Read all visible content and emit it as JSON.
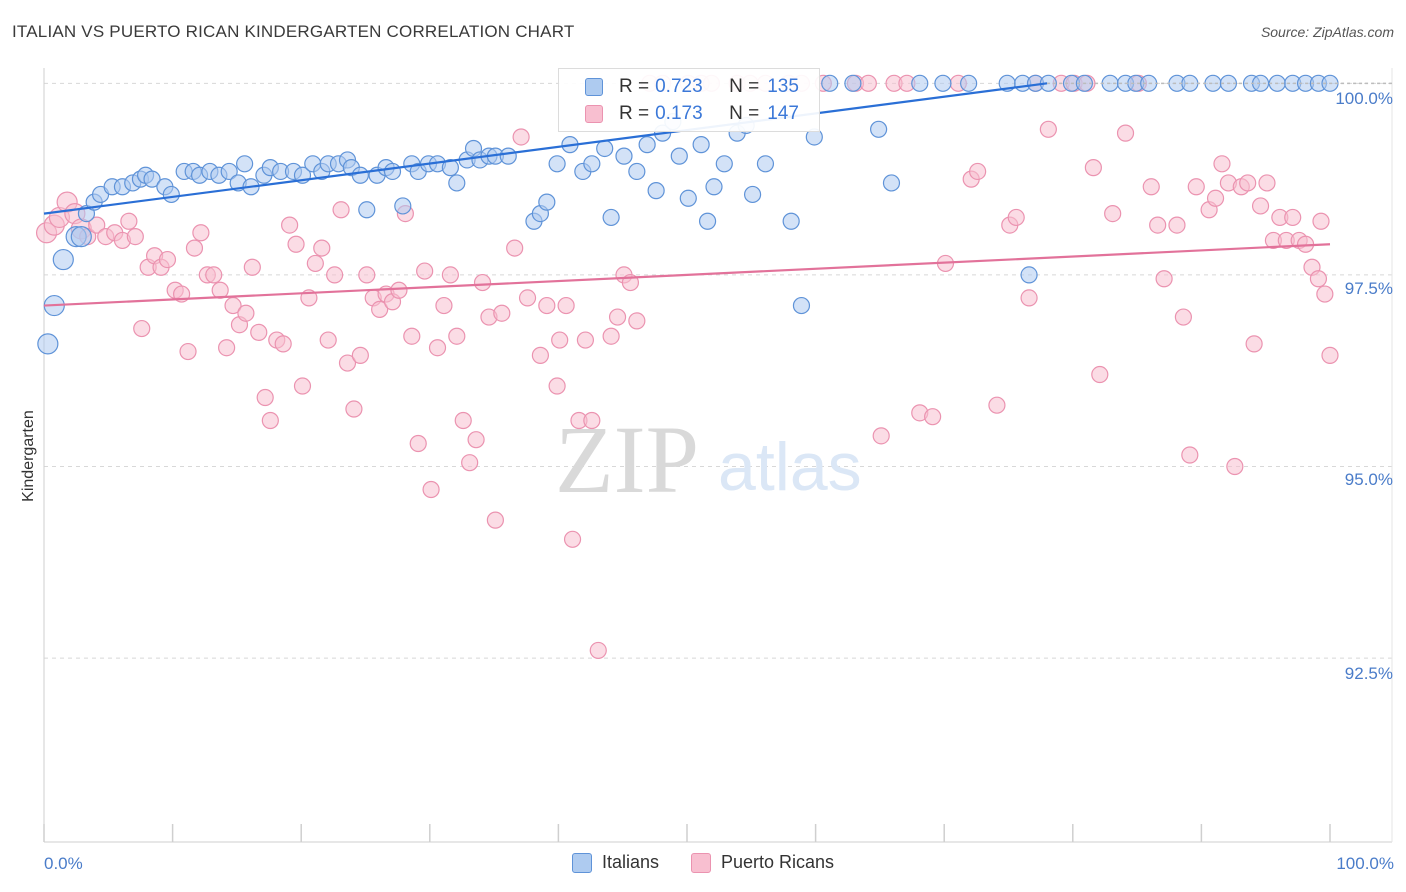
{
  "title": "ITALIAN VS PUERTO RICAN KINDERGARTEN CORRELATION CHART",
  "source": "Source: ZipAtlas.com",
  "watermark": {
    "zip": "ZIP",
    "atlas": "atlas"
  },
  "colors": {
    "blue_fill": "#aecbf0",
    "blue_stroke": "#5f93d8",
    "blue_line": "#2a6fd6",
    "pink_fill": "#f8bfd0",
    "pink_stroke": "#eb93b0",
    "pink_line": "#e2729a",
    "tick": "#4a7cc9",
    "grid": "#d8d8d8"
  },
  "legend": {
    "rows": [
      {
        "name": "Italians",
        "r_label": "R =",
        "r_value": "0.723",
        "n_label": "N =",
        "n_value": "135"
      },
      {
        "name": "Puerto Ricans",
        "r_label": "R =",
        "r_value": "0.173",
        "n_label": "N =",
        "n_value": "147"
      }
    ]
  },
  "chart_data": {
    "type": "scatter",
    "title": "ITALIAN VS PUERTO RICAN KINDERGARTEN CORRELATION CHART",
    "xlabel": "",
    "ylabel": "Kindergarten",
    "xlim": [
      0,
      100
    ],
    "ylim": [
      90.1,
      100.2
    ],
    "x_tick_labels": [
      "0.0%",
      "100.0%"
    ],
    "y_ticks": [
      {
        "value": 92.5,
        "label": "92.5%"
      },
      {
        "value": 95.0,
        "label": "95.0%"
      },
      {
        "value": 97.5,
        "label": "97.5%"
      },
      {
        "value": 100.0,
        "label": "100.0%"
      }
    ],
    "series": [
      {
        "name": "Italians",
        "trendline": {
          "x": [
            0,
            78
          ],
          "y": [
            98.3,
            100.0
          ]
        },
        "points": [
          [
            0.3,
            96.6
          ],
          [
            0.8,
            97.1
          ],
          [
            1.5,
            97.7
          ],
          [
            2.5,
            98.0
          ],
          [
            2.9,
            98.0
          ],
          [
            3.3,
            98.3
          ],
          [
            3.9,
            98.45
          ],
          [
            4.4,
            98.55
          ],
          [
            5.3,
            98.65
          ],
          [
            6.1,
            98.65
          ],
          [
            6.9,
            98.7
          ],
          [
            7.5,
            98.75
          ],
          [
            7.9,
            98.8
          ],
          [
            8.4,
            98.75
          ],
          [
            9.4,
            98.65
          ],
          [
            9.9,
            98.55
          ],
          [
            10.9,
            98.85
          ],
          [
            11.6,
            98.85
          ],
          [
            12.1,
            98.8
          ],
          [
            12.9,
            98.85
          ],
          [
            13.6,
            98.8
          ],
          [
            14.4,
            98.85
          ],
          [
            15.1,
            98.7
          ],
          [
            15.6,
            98.95
          ],
          [
            16.1,
            98.65
          ],
          [
            17.1,
            98.8
          ],
          [
            17.6,
            98.9
          ],
          [
            18.4,
            98.85
          ],
          [
            19.4,
            98.85
          ],
          [
            20.1,
            98.8
          ],
          [
            20.9,
            98.95
          ],
          [
            21.6,
            98.85
          ],
          [
            22.1,
            98.95
          ],
          [
            22.9,
            98.95
          ],
          [
            23.6,
            99.0
          ],
          [
            23.9,
            98.9
          ],
          [
            24.6,
            98.8
          ],
          [
            25.1,
            98.35
          ],
          [
            25.9,
            98.8
          ],
          [
            26.6,
            98.9
          ],
          [
            27.1,
            98.85
          ],
          [
            27.9,
            98.4
          ],
          [
            28.6,
            98.95
          ],
          [
            29.1,
            98.85
          ],
          [
            29.9,
            98.95
          ],
          [
            30.6,
            98.95
          ],
          [
            31.6,
            98.9
          ],
          [
            32.1,
            98.7
          ],
          [
            32.9,
            99.0
          ],
          [
            33.4,
            99.15
          ],
          [
            33.9,
            99.0
          ],
          [
            34.6,
            99.05
          ],
          [
            35.1,
            99.05
          ],
          [
            36.1,
            99.05
          ],
          [
            38.1,
            98.2
          ],
          [
            38.6,
            98.3
          ],
          [
            39.1,
            98.45
          ],
          [
            39.9,
            98.95
          ],
          [
            40.9,
            99.2
          ],
          [
            41.9,
            98.85
          ],
          [
            42.6,
            98.95
          ],
          [
            43.6,
            99.15
          ],
          [
            44.1,
            98.25
          ],
          [
            45.1,
            99.05
          ],
          [
            46.1,
            98.85
          ],
          [
            46.9,
            99.2
          ],
          [
            47.6,
            98.6
          ],
          [
            48.1,
            99.35
          ],
          [
            48.9,
            99.5
          ],
          [
            49.4,
            99.05
          ],
          [
            50.1,
            98.5
          ],
          [
            51.1,
            99.2
          ],
          [
            51.6,
            98.2
          ],
          [
            52.1,
            98.65
          ],
          [
            52.9,
            98.95
          ],
          [
            53.9,
            99.35
          ],
          [
            54.6,
            99.45
          ],
          [
            55.1,
            98.55
          ],
          [
            56.1,
            98.95
          ],
          [
            58.1,
            98.2
          ],
          [
            58.9,
            97.1
          ],
          [
            59.9,
            99.3
          ],
          [
            61.1,
            100.0
          ],
          [
            62.9,
            100.0
          ],
          [
            64.9,
            99.4
          ],
          [
            65.9,
            98.7
          ],
          [
            68.1,
            100.0
          ],
          [
            69.9,
            100.0
          ],
          [
            71.9,
            100.0
          ],
          [
            74.9,
            100.0
          ],
          [
            76.1,
            100.0
          ],
          [
            77.1,
            100.0
          ],
          [
            78.1,
            100.0
          ],
          [
            79.9,
            100.0
          ],
          [
            80.9,
            100.0
          ],
          [
            82.9,
            100.0
          ],
          [
            84.1,
            100.0
          ],
          [
            84.9,
            100.0
          ],
          [
            85.9,
            100.0
          ],
          [
            88.1,
            100.0
          ],
          [
            89.1,
            100.0
          ],
          [
            90.9,
            100.0
          ],
          [
            92.1,
            100.0
          ],
          [
            93.9,
            100.0
          ],
          [
            94.6,
            100.0
          ],
          [
            95.9,
            100.0
          ],
          [
            97.1,
            100.0
          ],
          [
            98.1,
            100.0
          ],
          [
            99.1,
            100.0
          ],
          [
            76.6,
            97.5
          ],
          [
            100.0,
            100.0
          ]
        ]
      },
      {
        "name": "Puerto Ricans",
        "trendline": {
          "x": [
            0,
            100
          ],
          "y": [
            97.1,
            97.9
          ]
        },
        "points": [
          [
            0.2,
            98.05
          ],
          [
            0.8,
            98.15
          ],
          [
            1.2,
            98.25
          ],
          [
            1.8,
            98.45
          ],
          [
            2.4,
            98.3
          ],
          [
            2.9,
            98.1
          ],
          [
            3.4,
            98.0
          ],
          [
            4.1,
            98.15
          ],
          [
            4.8,
            98.0
          ],
          [
            5.5,
            98.05
          ],
          [
            6.1,
            97.95
          ],
          [
            6.6,
            98.2
          ],
          [
            7.1,
            98.0
          ],
          [
            7.6,
            96.8
          ],
          [
            8.1,
            97.6
          ],
          [
            8.6,
            97.75
          ],
          [
            9.1,
            97.6
          ],
          [
            9.6,
            97.7
          ],
          [
            10.2,
            97.3
          ],
          [
            10.7,
            97.25
          ],
          [
            11.2,
            96.5
          ],
          [
            11.7,
            97.85
          ],
          [
            12.2,
            98.05
          ],
          [
            12.7,
            97.5
          ],
          [
            13.2,
            97.5
          ],
          [
            13.7,
            97.3
          ],
          [
            14.2,
            96.55
          ],
          [
            14.7,
            97.1
          ],
          [
            15.2,
            96.85
          ],
          [
            15.7,
            97.0
          ],
          [
            16.2,
            97.6
          ],
          [
            16.7,
            96.75
          ],
          [
            17.2,
            95.9
          ],
          [
            17.6,
            95.6
          ],
          [
            18.1,
            96.65
          ],
          [
            18.6,
            96.6
          ],
          [
            19.1,
            98.15
          ],
          [
            19.6,
            97.9
          ],
          [
            20.1,
            96.05
          ],
          [
            20.6,
            97.2
          ],
          [
            21.1,
            97.65
          ],
          [
            21.6,
            97.85
          ],
          [
            22.1,
            96.65
          ],
          [
            22.6,
            97.5
          ],
          [
            23.1,
            98.35
          ],
          [
            23.6,
            96.35
          ],
          [
            24.1,
            95.75
          ],
          [
            24.6,
            96.45
          ],
          [
            25.1,
            97.5
          ],
          [
            25.6,
            97.2
          ],
          [
            26.1,
            97.05
          ],
          [
            26.6,
            97.25
          ],
          [
            27.1,
            97.15
          ],
          [
            27.6,
            97.3
          ],
          [
            28.1,
            98.3
          ],
          [
            28.6,
            96.7
          ],
          [
            29.1,
            95.3
          ],
          [
            29.6,
            97.55
          ],
          [
            30.1,
            94.7
          ],
          [
            30.6,
            96.55
          ],
          [
            31.1,
            97.1
          ],
          [
            31.6,
            97.5
          ],
          [
            32.1,
            96.7
          ],
          [
            32.6,
            95.6
          ],
          [
            33.1,
            95.05
          ],
          [
            33.6,
            95.35
          ],
          [
            34.1,
            97.4
          ],
          [
            34.6,
            96.95
          ],
          [
            35.1,
            94.3
          ],
          [
            35.6,
            97.0
          ],
          [
            36.6,
            97.85
          ],
          [
            37.1,
            99.3
          ],
          [
            37.6,
            97.2
          ],
          [
            38.6,
            96.45
          ],
          [
            39.1,
            97.1
          ],
          [
            39.9,
            96.05
          ],
          [
            40.6,
            97.1
          ],
          [
            40.1,
            96.65
          ],
          [
            41.1,
            94.05
          ],
          [
            41.6,
            95.6
          ],
          [
            42.1,
            96.65
          ],
          [
            42.6,
            95.6
          ],
          [
            43.1,
            92.6
          ],
          [
            44.1,
            96.7
          ],
          [
            44.6,
            96.95
          ],
          [
            45.1,
            97.5
          ],
          [
            45.6,
            97.4
          ],
          [
            46.1,
            96.9
          ],
          [
            47.1,
            100.0
          ],
          [
            48.1,
            100.0
          ],
          [
            50.1,
            100.0
          ],
          [
            51.1,
            100.0
          ],
          [
            51.9,
            100.0
          ],
          [
            53.9,
            100.0
          ],
          [
            54.9,
            100.0
          ],
          [
            56.1,
            100.0
          ],
          [
            57.9,
            100.0
          ],
          [
            58.9,
            100.0
          ],
          [
            60.6,
            100.0
          ],
          [
            63.1,
            100.0
          ],
          [
            64.1,
            100.0
          ],
          [
            65.1,
            95.4
          ],
          [
            66.1,
            100.0
          ],
          [
            67.1,
            100.0
          ],
          [
            68.1,
            95.7
          ],
          [
            69.1,
            95.65
          ],
          [
            70.1,
            97.65
          ],
          [
            71.1,
            100.0
          ],
          [
            72.1,
            98.75
          ],
          [
            72.6,
            98.85
          ],
          [
            74.1,
            95.8
          ],
          [
            75.1,
            98.15
          ],
          [
            75.6,
            98.25
          ],
          [
            76.6,
            97.2
          ],
          [
            77.1,
            100.0
          ],
          [
            78.1,
            99.4
          ],
          [
            79.1,
            100.0
          ],
          [
            80.1,
            100.0
          ],
          [
            81.1,
            100.0
          ],
          [
            81.6,
            98.9
          ],
          [
            82.1,
            96.2
          ],
          [
            83.1,
            98.3
          ],
          [
            84.1,
            99.35
          ],
          [
            85.1,
            100.0
          ],
          [
            86.1,
            98.65
          ],
          [
            86.6,
            98.15
          ],
          [
            87.1,
            97.45
          ],
          [
            88.1,
            98.15
          ],
          [
            88.6,
            96.95
          ],
          [
            89.1,
            95.15
          ],
          [
            89.6,
            98.65
          ],
          [
            90.6,
            98.35
          ],
          [
            91.1,
            98.5
          ],
          [
            91.6,
            98.95
          ],
          [
            92.1,
            98.7
          ],
          [
            92.6,
            95.0
          ],
          [
            93.1,
            98.65
          ],
          [
            93.6,
            98.7
          ],
          [
            94.1,
            96.6
          ],
          [
            94.6,
            98.4
          ],
          [
            95.1,
            98.7
          ],
          [
            95.6,
            97.95
          ],
          [
            96.1,
            98.25
          ],
          [
            96.6,
            97.95
          ],
          [
            97.1,
            98.25
          ],
          [
            97.6,
            97.95
          ],
          [
            98.1,
            97.9
          ],
          [
            98.6,
            97.6
          ],
          [
            99.1,
            97.45
          ],
          [
            99.6,
            97.25
          ],
          [
            100.0,
            96.45
          ],
          [
            99.3,
            98.2
          ]
        ]
      }
    ]
  }
}
